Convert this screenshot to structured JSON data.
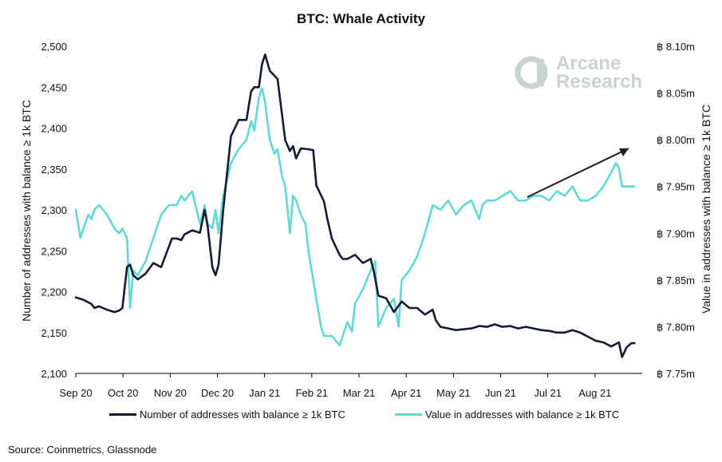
{
  "title": "BTC: Whale Activity",
  "source": "Source: Coinmetrics, Glassnode",
  "logo": {
    "line1": "Arcane",
    "line2": "Research"
  },
  "colors": {
    "navy": "#141c33",
    "cyan": "#63d8d6",
    "axis": "#000000",
    "logo": "#c9d3d3"
  },
  "chart_data": {
    "type": "line",
    "title": "BTC: Whale Activity",
    "x_tick_labels": [
      "Sep 20",
      "Oct 20",
      "Nov 20",
      "Dec 20",
      "Jan 21",
      "Feb 21",
      "Mar 21",
      "Apr 21",
      "May 21",
      "Jun 21",
      "Jul 21",
      "Aug 21"
    ],
    "x_range": [
      0,
      365
    ],
    "y_left": {
      "label": "Number of addresses with balance ≥ 1k BTC",
      "range": [
        2100,
        2500
      ],
      "ticks": [
        2100,
        2150,
        2200,
        2250,
        2300,
        2350,
        2400,
        2450,
        2500
      ],
      "tick_labels": [
        "2,100",
        "2,150",
        "2,200",
        "2,250",
        "2,300",
        "2,350",
        "2,400",
        "2,450",
        "2,500"
      ]
    },
    "y_right": {
      "label": "Value in addresses with balance ≥ 1k BTC",
      "range": [
        7.75,
        8.1
      ],
      "ticks": [
        7.75,
        7.8,
        7.85,
        7.9,
        7.95,
        8.0,
        8.05,
        8.1
      ],
      "tick_labels": [
        "฿ 7.75m",
        "฿ 7.80m",
        "฿ 7.85m",
        "฿ 7.90m",
        "฿ 7.95m",
        "฿ 8.00m",
        "฿ 8.05m",
        "฿ 8.10m"
      ]
    },
    "series": [
      {
        "name": "Number of addresses with balance ≥ 1k BTC",
        "axis": "left",
        "color": "#141c33",
        "x": [
          0,
          5,
          10,
          12,
          15,
          20,
          25,
          28,
          30,
          33,
          35,
          37,
          40,
          45,
          50,
          55,
          60,
          62,
          65,
          68,
          70,
          75,
          80,
          83,
          85,
          88,
          90,
          92,
          95,
          100,
          105,
          110,
          113,
          115,
          118,
          120,
          122,
          125,
          130,
          135,
          138,
          140,
          142,
          145,
          150,
          153,
          155,
          158,
          160,
          162,
          165,
          170,
          172,
          175,
          180,
          185,
          190,
          192,
          195,
          200,
          205,
          210,
          215,
          220,
          225,
          230,
          232,
          235,
          240,
          245,
          250,
          255,
          260,
          265,
          270,
          275,
          280,
          285,
          290,
          295,
          300,
          305,
          310,
          315,
          320,
          325,
          330,
          335,
          340,
          345,
          350,
          352,
          355,
          358,
          360
        ],
        "values": [
          2193,
          2190,
          2185,
          2180,
          2182,
          2178,
          2175,
          2177,
          2180,
          2230,
          2233,
          2220,
          2215,
          2222,
          2235,
          2230,
          2255,
          2265,
          2265,
          2263,
          2270,
          2275,
          2272,
          2300,
          2280,
          2230,
          2220,
          2233,
          2300,
          2390,
          2410,
          2410,
          2445,
          2450,
          2450,
          2478,
          2490,
          2470,
          2460,
          2385,
          2372,
          2378,
          2363,
          2375,
          2374,
          2373,
          2330,
          2318,
          2310,
          2290,
          2265,
          2245,
          2240,
          2240,
          2245,
          2235,
          2240,
          2225,
          2195,
          2192,
          2175,
          2188,
          2180,
          2180,
          2172,
          2178,
          2165,
          2157,
          2155,
          2153,
          2154,
          2155,
          2158,
          2157,
          2160,
          2157,
          2158,
          2155,
          2157,
          2155,
          2153,
          2152,
          2150,
          2150,
          2153,
          2150,
          2145,
          2140,
          2138,
          2133,
          2138,
          2120,
          2132,
          2137,
          2137
        ]
      },
      {
        "name": "Value in addresses with balance ≥ 1k BTC",
        "axis": "right",
        "color": "#63d8d6",
        "x": [
          0,
          3,
          5,
          8,
          10,
          12,
          15,
          20,
          25,
          28,
          30,
          33,
          35,
          37,
          40,
          45,
          50,
          55,
          60,
          65,
          68,
          70,
          75,
          80,
          83,
          85,
          88,
          90,
          92,
          95,
          100,
          105,
          110,
          113,
          115,
          118,
          120,
          122,
          125,
          128,
          130,
          133,
          135,
          138,
          140,
          142,
          145,
          148,
          150,
          153,
          155,
          158,
          160,
          165,
          170,
          175,
          178,
          180,
          185,
          190,
          193,
          195,
          200,
          205,
          208,
          210,
          215,
          220,
          225,
          230,
          235,
          240,
          245,
          250,
          255,
          260,
          262,
          265,
          270,
          275,
          280,
          285,
          290,
          295,
          300,
          305,
          310,
          315,
          320,
          325,
          330,
          335,
          340,
          345,
          348,
          350,
          352,
          355,
          360
        ],
        "values": [
          7.925,
          7.895,
          7.905,
          7.92,
          7.915,
          7.925,
          7.93,
          7.92,
          7.905,
          7.9,
          7.905,
          7.895,
          7.82,
          7.86,
          7.855,
          7.87,
          7.895,
          7.92,
          7.93,
          7.93,
          7.94,
          7.935,
          7.945,
          7.91,
          7.93,
          7.91,
          7.905,
          7.925,
          7.9,
          7.94,
          7.975,
          7.99,
          8.0,
          8.02,
          8.01,
          8.045,
          8.055,
          8.04,
          8.0,
          7.985,
          7.99,
          7.96,
          7.95,
          7.9,
          7.94,
          7.935,
          7.92,
          7.91,
          7.88,
          7.85,
          7.83,
          7.8,
          7.79,
          7.79,
          7.78,
          7.805,
          7.795,
          7.825,
          7.84,
          7.86,
          7.87,
          7.8,
          7.82,
          7.83,
          7.8,
          7.85,
          7.86,
          7.875,
          7.9,
          7.93,
          7.925,
          7.935,
          7.92,
          7.93,
          7.935,
          7.915,
          7.93,
          7.935,
          7.935,
          7.94,
          7.945,
          7.935,
          7.935,
          7.94,
          7.94,
          7.935,
          7.945,
          7.94,
          7.95,
          7.935,
          7.935,
          7.94,
          7.95,
          7.965,
          7.975,
          7.97,
          7.95,
          7.95,
          7.95
        ]
      }
    ]
  }
}
